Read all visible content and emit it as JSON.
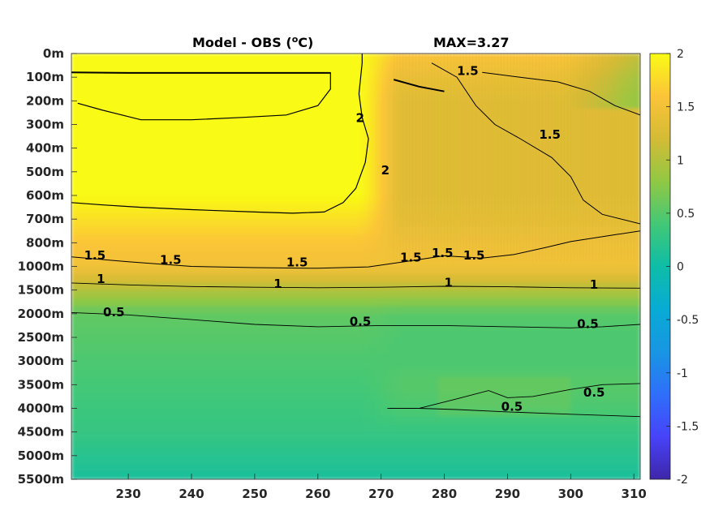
{
  "chart_data": {
    "type": "heatmap",
    "title": "Model - OBS (°C)",
    "title_parts": {
      "main": "Model - OBS (",
      "superscript": "o",
      "unit": "C)"
    },
    "max_label": "MAX=3.27",
    "xlabel": "",
    "ylabel": "",
    "xlim": [
      221,
      311
    ],
    "x_ticks": [
      230,
      240,
      250,
      260,
      270,
      280,
      290,
      300,
      310
    ],
    "y_ticks": [
      "0m",
      "100m",
      "200m",
      "300m",
      "400m",
      "500m",
      "600m",
      "700m",
      "800m",
      "1000m",
      "1500m",
      "2000m",
      "2500m",
      "3000m",
      "3500m",
      "4000m",
      "4500m",
      "5000m",
      "5500m"
    ],
    "clim": [
      -2,
      2
    ],
    "colorbar_ticks": [
      "2",
      "1.5",
      "1",
      "0.5",
      "0",
      "-0.5",
      "-1",
      "-1.5",
      "-2"
    ],
    "colormap": "parula",
    "contour_levels": [
      0.5,
      1,
      1.5,
      2
    ],
    "value_profile_by_depth": {
      "depth_index": [
        0,
        1,
        2,
        3,
        4,
        5,
        6,
        7,
        8,
        9,
        10,
        11,
        12,
        13,
        14,
        15,
        16,
        17,
        18
      ],
      "west_basin_x225_265": [
        2.0,
        2.0,
        2.0,
        2.0,
        2.0,
        2.0,
        2.0,
        1.8,
        1.6,
        1.5,
        1.0,
        0.55,
        0.5,
        0.45,
        0.4,
        0.35,
        0.3,
        0.2,
        0.1
      ],
      "east_basin_x275_305": [
        1.6,
        1.4,
        1.3,
        1.3,
        1.3,
        1.3,
        1.3,
        1.35,
        1.45,
        1.5,
        1.0,
        0.5,
        0.45,
        0.45,
        0.5,
        0.45,
        0.3,
        0.2,
        0.1
      ]
    },
    "contour_labels": [
      {
        "text": "1.5",
        "x": 223,
        "y": 8.7
      },
      {
        "text": "1.5",
        "x": 235,
        "y": 8.9
      },
      {
        "text": "1.5",
        "x": 255,
        "y": 9.0
      },
      {
        "text": "1.5",
        "x": 273,
        "y": 8.8
      },
      {
        "text": "1.5",
        "x": 278,
        "y": 8.6
      },
      {
        "text": "1.5",
        "x": 283,
        "y": 8.7
      },
      {
        "text": "1",
        "x": 225,
        "y": 9.7
      },
      {
        "text": "1",
        "x": 253,
        "y": 9.9
      },
      {
        "text": "1",
        "x": 280,
        "y": 9.85
      },
      {
        "text": "1",
        "x": 303,
        "y": 9.95
      },
      {
        "text": "0.5",
        "x": 226,
        "y": 11.1
      },
      {
        "text": "0.5",
        "x": 265,
        "y": 11.5
      },
      {
        "text": "0.5",
        "x": 301,
        "y": 11.6
      },
      {
        "text": "0.5",
        "x": 302,
        "y": 14.5
      },
      {
        "text": "0.5",
        "x": 289,
        "y": 15.1
      },
      {
        "text": "2",
        "x": 270,
        "y": 5.1
      },
      {
        "text": "2",
        "x": 266,
        "y": 2.9
      },
      {
        "text": "1.5",
        "x": 282,
        "y": 0.9
      },
      {
        "text": "1.5",
        "x": 295,
        "y": 3.6
      }
    ]
  }
}
